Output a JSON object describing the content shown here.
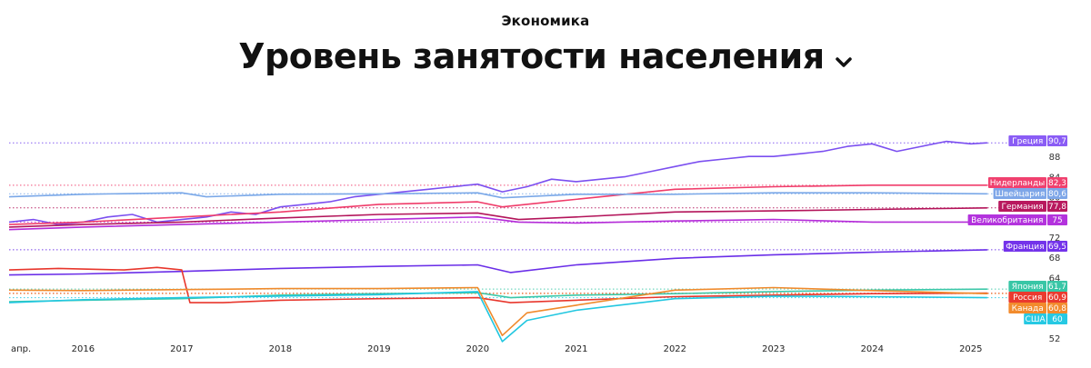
{
  "header": {
    "category": "Экономика",
    "title": "Уровень занятости населения"
  },
  "chart_data": {
    "type": "line",
    "ylim": [
      52,
      92
    ],
    "yticks": [
      52,
      56,
      60,
      64,
      68,
      72,
      76,
      80,
      84,
      88
    ],
    "xlim": [
      "2015-04",
      "2025-06"
    ],
    "xticks": [
      "апр.",
      "2016",
      "2017",
      "2018",
      "2019",
      "2020",
      "2021",
      "2022",
      "2023",
      "2024",
      "2025"
    ],
    "series": [
      {
        "name": "Греция",
        "value": "90,7",
        "color": "#7b4ff0",
        "label_color": "#8a5cf5",
        "points": [
          [
            "2015-04",
            75
          ],
          [
            "2015-07",
            75.5
          ],
          [
            "2015-10",
            74.5
          ],
          [
            "2016-01",
            75
          ],
          [
            "2016-04",
            76
          ],
          [
            "2016-07",
            76.5
          ],
          [
            "2016-10",
            75
          ],
          [
            "2017-01",
            75.5
          ],
          [
            "2017-04",
            76
          ],
          [
            "2017-07",
            77
          ],
          [
            "2017-10",
            76.5
          ],
          [
            "2018-01",
            78
          ],
          [
            "2018-04",
            78.5
          ],
          [
            "2018-07",
            79
          ],
          [
            "2018-10",
            80
          ],
          [
            "2019-01",
            80.5
          ],
          [
            "2019-04",
            81
          ],
          [
            "2019-07",
            81.5
          ],
          [
            "2019-10",
            82
          ],
          [
            "2020-01",
            82.5
          ],
          [
            "2020-04",
            81
          ],
          [
            "2020-07",
            82
          ],
          [
            "2020-10",
            83.5
          ],
          [
            "2021-01",
            83
          ],
          [
            "2021-04",
            83.5
          ],
          [
            "2021-07",
            84
          ],
          [
            "2021-10",
            85
          ],
          [
            "2022-01",
            86
          ],
          [
            "2022-04",
            87
          ],
          [
            "2022-07",
            87.5
          ],
          [
            "2022-10",
            88
          ],
          [
            "2023-01",
            88
          ],
          [
            "2023-04",
            88.5
          ],
          [
            "2023-07",
            89
          ],
          [
            "2023-10",
            90
          ],
          [
            "2024-01",
            90.5
          ],
          [
            "2024-04",
            89
          ],
          [
            "2024-07",
            90
          ],
          [
            "2024-10",
            91
          ],
          [
            "2025-01",
            90.5
          ],
          [
            "2025-03",
            90.7
          ]
        ]
      },
      {
        "name": "Нидерланды",
        "value": "82,3",
        "color": "#f03c6a",
        "label_color": "#f0416f",
        "points": [
          [
            "2015-04",
            74.5
          ],
          [
            "2016-01",
            75
          ],
          [
            "2017-01",
            76
          ],
          [
            "2018-01",
            77
          ],
          [
            "2019-01",
            78.5
          ],
          [
            "2020-01",
            79
          ],
          [
            "2020-04",
            78
          ],
          [
            "2020-10",
            79
          ],
          [
            "2021-04",
            80
          ],
          [
            "2022-01",
            81.5
          ],
          [
            "2023-01",
            82
          ],
          [
            "2024-01",
            82.3
          ],
          [
            "2025-03",
            82.3
          ]
        ]
      },
      {
        "name": "Швейцария",
        "value": "80,6",
        "color": "#7aa8e8",
        "label_color": "#7ea6e8",
        "points": [
          [
            "2015-04",
            80
          ],
          [
            "2016-01",
            80.5
          ],
          [
            "2017-01",
            80.8
          ],
          [
            "2017-04",
            80
          ],
          [
            "2018-01",
            80.5
          ],
          [
            "2019-01",
            80.6
          ],
          [
            "2020-01",
            80.8
          ],
          [
            "2020-04",
            79.8
          ],
          [
            "2021-01",
            80.5
          ],
          [
            "2022-01",
            80.5
          ],
          [
            "2023-01",
            80.8
          ],
          [
            "2024-01",
            80.8
          ],
          [
            "2025-03",
            80.6
          ]
        ]
      },
      {
        "name": "Германия",
        "value": "77,8",
        "color": "#b3145a",
        "label_color": "#b8195e",
        "points": [
          [
            "2015-04",
            74
          ],
          [
            "2016-01",
            74.5
          ],
          [
            "2017-01",
            75
          ],
          [
            "2018-01",
            75.8
          ],
          [
            "2019-01",
            76.5
          ],
          [
            "2020-01",
            76.8
          ],
          [
            "2020-06",
            75.5
          ],
          [
            "2021-01",
            76
          ],
          [
            "2022-01",
            77
          ],
          [
            "2023-01",
            77.2
          ],
          [
            "2024-01",
            77.5
          ],
          [
            "2025-03",
            77.8
          ]
        ]
      },
      {
        "name": "Великобритания",
        "value": "75",
        "color": "#b42cd8",
        "label_color": "#b333dd",
        "points": [
          [
            "2015-04",
            73.5
          ],
          [
            "2016-01",
            74
          ],
          [
            "2017-01",
            74.5
          ],
          [
            "2018-01",
            75
          ],
          [
            "2019-01",
            75.5
          ],
          [
            "2020-01",
            76
          ],
          [
            "2020-06",
            75
          ],
          [
            "2021-01",
            74.8
          ],
          [
            "2022-01",
            75.2
          ],
          [
            "2023-01",
            75.5
          ],
          [
            "2024-01",
            75
          ],
          [
            "2025-03",
            75
          ]
        ]
      },
      {
        "name": "Франция",
        "value": "69,5",
        "color": "#6a2ee8",
        "label_color": "#7333ea",
        "points": [
          [
            "2015-04",
            64.5
          ],
          [
            "2016-01",
            64.7
          ],
          [
            "2017-01",
            65.2
          ],
          [
            "2018-01",
            65.8
          ],
          [
            "2019-01",
            66.2
          ],
          [
            "2020-01",
            66.5
          ],
          [
            "2020-05",
            65
          ],
          [
            "2021-01",
            66.5
          ],
          [
            "2022-01",
            67.8
          ],
          [
            "2023-01",
            68.5
          ],
          [
            "2024-01",
            69
          ],
          [
            "2025-03",
            69.5
          ]
        ]
      },
      {
        "name": "Япония",
        "value": "61,7",
        "color": "#3cc7a8",
        "label_color": "#38c6a6",
        "points": [
          [
            "2015-04",
            59.2
          ],
          [
            "2016-01",
            59.5
          ],
          [
            "2017-01",
            59.8
          ],
          [
            "2018-01",
            60.5
          ],
          [
            "2019-01",
            60.8
          ],
          [
            "2020-01",
            61
          ],
          [
            "2020-05",
            60
          ],
          [
            "2021-01",
            60.5
          ],
          [
            "2022-01",
            60.8
          ],
          [
            "2023-01",
            61.2
          ],
          [
            "2024-01",
            61.5
          ],
          [
            "2025-03",
            61.7
          ]
        ]
      },
      {
        "name": "Россия",
        "value": "60,9",
        "color": "#e8362c",
        "label_color": "#ea3a2f",
        "points": [
          [
            "2015-04",
            65.5
          ],
          [
            "2015-10",
            65.8
          ],
          [
            "2016-06",
            65.5
          ],
          [
            "2016-10",
            66
          ],
          [
            "2017-01",
            65.5
          ],
          [
            "2017-02",
            59
          ],
          [
            "2017-06",
            59
          ],
          [
            "2018-01",
            59.5
          ],
          [
            "2019-01",
            59.8
          ],
          [
            "2020-01",
            60
          ],
          [
            "2020-05",
            59
          ],
          [
            "2021-01",
            59.5
          ],
          [
            "2022-01",
            60.2
          ],
          [
            "2023-01",
            60.5
          ],
          [
            "2024-01",
            60.8
          ],
          [
            "2025-03",
            60.9
          ]
        ]
      },
      {
        "name": "Канада",
        "value": "60,8",
        "color": "#f08a2c",
        "label_color": "#f28b2d",
        "points": [
          [
            "2015-04",
            61.5
          ],
          [
            "2016-01",
            61.4
          ],
          [
            "2017-01",
            61.6
          ],
          [
            "2018-01",
            61.8
          ],
          [
            "2019-01",
            61.8
          ],
          [
            "2020-01",
            62
          ],
          [
            "2020-04",
            52.5
          ],
          [
            "2020-07",
            57
          ],
          [
            "2021-01",
            58.5
          ],
          [
            "2022-01",
            61.5
          ],
          [
            "2023-01",
            62
          ],
          [
            "2024-01",
            61.4
          ],
          [
            "2025-03",
            60.8
          ]
        ]
      },
      {
        "name": "США",
        "value": "60",
        "color": "#22c7e0",
        "label_color": "#26c9e3",
        "points": [
          [
            "2015-04",
            59
          ],
          [
            "2016-01",
            59.6
          ],
          [
            "2017-01",
            60
          ],
          [
            "2018-01",
            60.3
          ],
          [
            "2019-01",
            60.6
          ],
          [
            "2020-01",
            61.2
          ],
          [
            "2020-04",
            51.3
          ],
          [
            "2020-07",
            55.5
          ],
          [
            "2021-01",
            57.5
          ],
          [
            "2022-01",
            59.8
          ],
          [
            "2023-01",
            60.3
          ],
          [
            "2024-01",
            60.2
          ],
          [
            "2025-03",
            60
          ]
        ]
      }
    ]
  }
}
